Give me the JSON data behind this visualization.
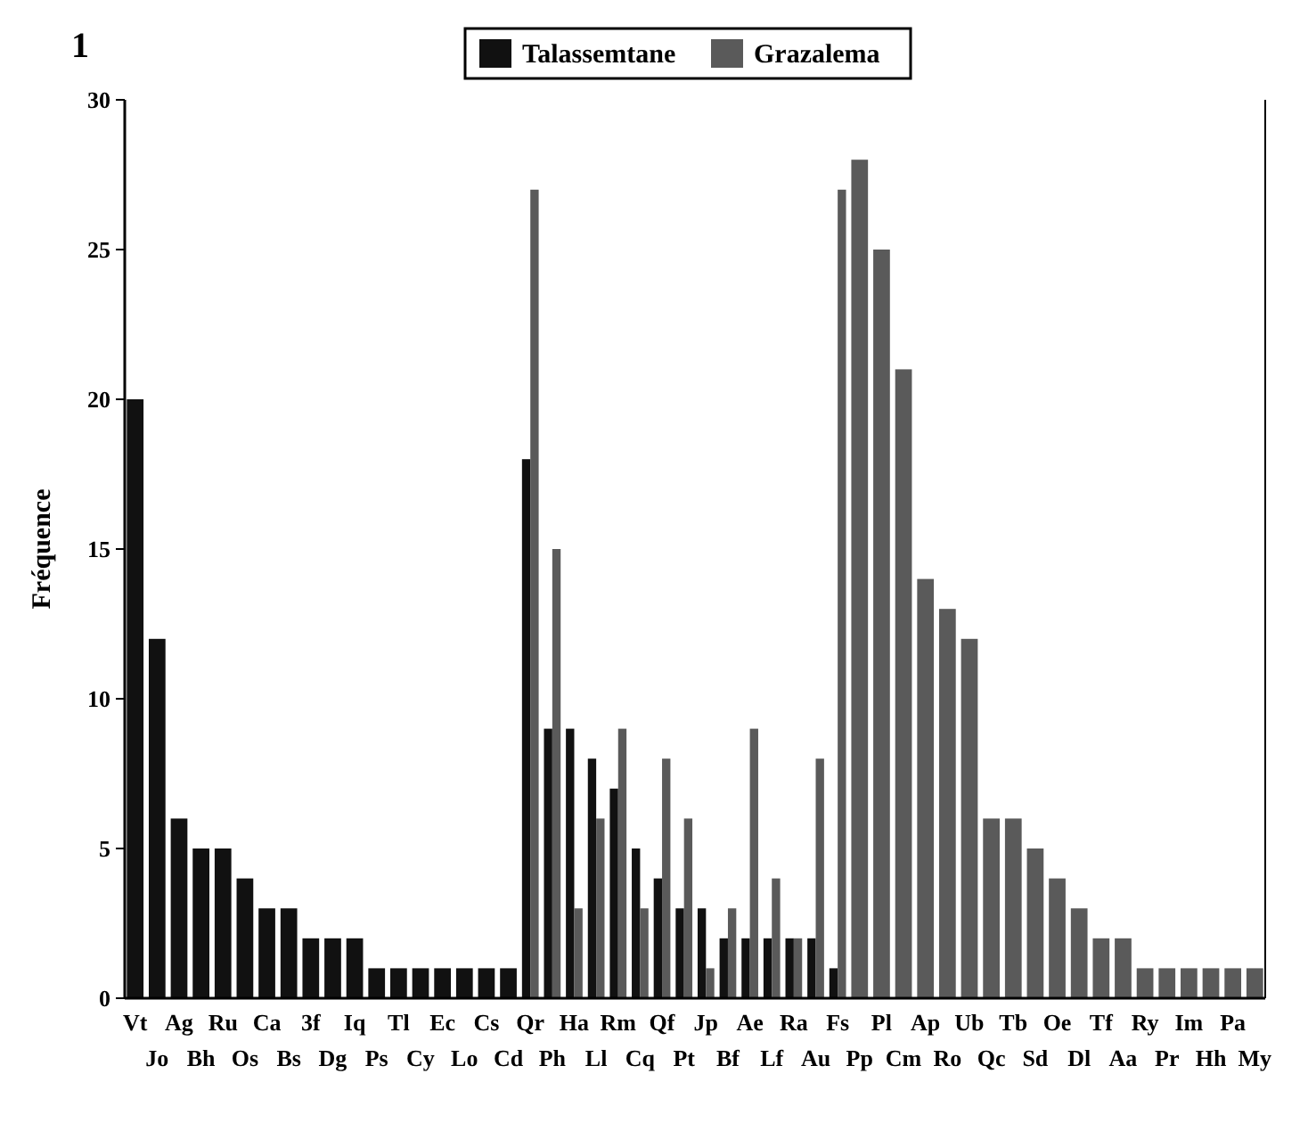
{
  "chart_data": {
    "type": "bar",
    "title": "1",
    "ylabel": "Fréquence",
    "legend": "top",
    "grid": false,
    "ylim": [
      0,
      30
    ],
    "yticks": [
      0,
      5,
      10,
      15,
      20,
      25,
      30
    ],
    "categories": [
      "Vt",
      "Jo",
      "Ag",
      "Bh",
      "Ru",
      "Os",
      "Ca",
      "Bs",
      "3f",
      "Dg",
      "Iq",
      "Ps",
      "Tl",
      "Cy",
      "Ec",
      "Lo",
      "Cs",
      "Cd",
      "Qr",
      "Ph",
      "Ha",
      "Ll",
      "Rm",
      "Cq",
      "Qf",
      "Pt",
      "Jp",
      "Bf",
      "Ae",
      "Lf",
      "Ra",
      "Au",
      "Fs",
      "Pp",
      "Pl",
      "Cm",
      "Ap",
      "Ro",
      "Ub",
      "Qc",
      "Tb",
      "Sd",
      "Oe",
      "Dl",
      "Tf",
      "Aa",
      "Ry",
      "Pr",
      "Im",
      "Hh",
      "Pa",
      "My"
    ],
    "series": [
      {
        "name": "Talassemtane",
        "color": "#111111",
        "values": [
          20,
          12,
          6,
          5,
          5,
          4,
          3,
          3,
          2,
          2,
          2,
          1,
          1,
          1,
          1,
          1,
          1,
          1,
          18,
          9,
          9,
          8,
          7,
          5,
          4,
          3,
          3,
          2,
          2,
          2,
          2,
          2,
          1,
          null,
          null,
          null,
          null,
          null,
          null,
          null,
          null,
          null,
          null,
          null,
          null,
          null,
          null,
          null,
          null,
          null,
          null,
          null
        ]
      },
      {
        "name": "Grazalema",
        "color": "#5a5a5a",
        "values": [
          null,
          null,
          null,
          null,
          null,
          null,
          null,
          null,
          null,
          null,
          null,
          null,
          null,
          null,
          null,
          null,
          null,
          null,
          27,
          15,
          3,
          6,
          9,
          3,
          8,
          6,
          1,
          3,
          9,
          4,
          2,
          8,
          27,
          28,
          25,
          21,
          14,
          13,
          12,
          6,
          6,
          5,
          4,
          3,
          2,
          2,
          1,
          1,
          1,
          1,
          1,
          1
        ]
      }
    ]
  }
}
